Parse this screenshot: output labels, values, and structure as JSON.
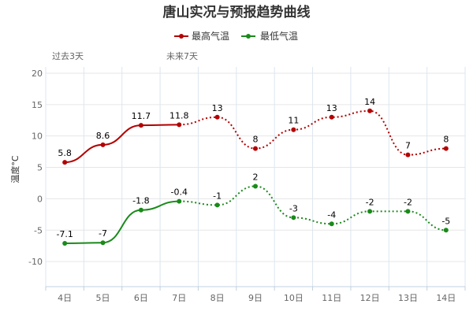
{
  "chart_data": {
    "type": "line",
    "title": "唐山实况与预报趋势曲线",
    "xlabel": "",
    "ylabel": "温度°C",
    "categories": [
      "4日",
      "5日",
      "6日",
      "7日",
      "8日",
      "9日",
      "10日",
      "11日",
      "12日",
      "13日",
      "14日"
    ],
    "ylim": [
      -14,
      21
    ],
    "yticks": [
      -10,
      -5,
      0,
      5,
      10,
      15,
      20
    ],
    "periods": {
      "past": "过去3天",
      "future": "未来7天"
    },
    "observed_through_index": 3,
    "series": [
      {
        "name": "最高气温",
        "color": "#b30000",
        "values": [
          5.8,
          8.6,
          11.7,
          11.8,
          13,
          8,
          11,
          13,
          14,
          7,
          8
        ],
        "labels": [
          "5.8",
          "8.6",
          "11.7",
          "11.8",
          "13",
          "8",
          "11",
          "13",
          "14",
          "7",
          "8"
        ]
      },
      {
        "name": "最低气温",
        "color": "#1a8a1a",
        "values": [
          -7.1,
          -7,
          -1.8,
          -0.4,
          -1,
          2,
          -3,
          -4,
          -2,
          -2,
          -5
        ],
        "labels": [
          "-7.1",
          "-7",
          "-1.8",
          "-0.4",
          "-1",
          "2",
          "-3",
          "-4",
          "-2",
          "-2",
          "-5"
        ]
      }
    ],
    "grid": true,
    "legend": "top-center"
  }
}
